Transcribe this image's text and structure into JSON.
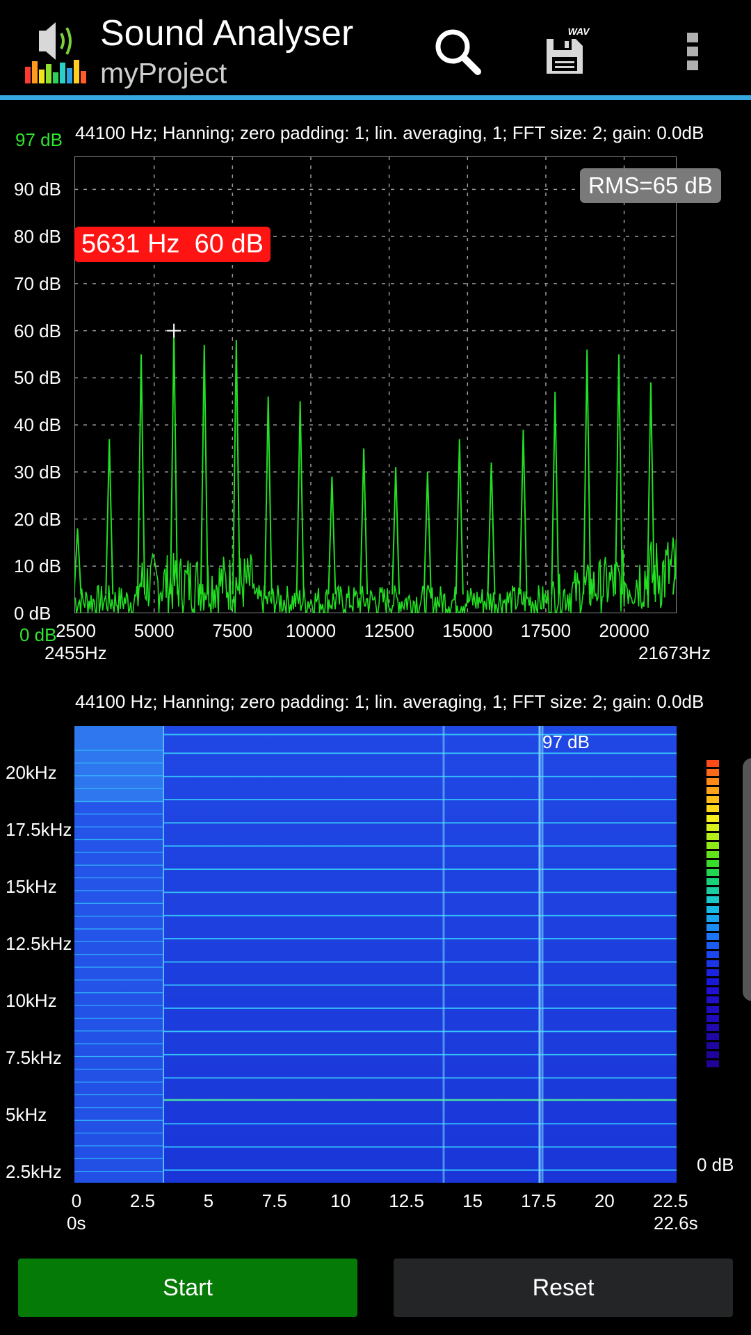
{
  "app": {
    "title": "Sound Analyser",
    "subtitle": "myProject",
    "accent_color": "#35a8e0"
  },
  "toolbar": {
    "search_icon": "search-icon",
    "save_icon": "save-wav-icon",
    "save_badge": "WAV",
    "overflow_icon": "more-vert-icon"
  },
  "spectrum": {
    "info": "44100 Hz; Hanning; zero padding: 1; lin. averaging, 1; FFT size: 2; gain: 0.0dB",
    "y_max_label": "97 dB",
    "y_min_label": "0 dB",
    "y_ticks": [
      "90 dB",
      "80 dB",
      "70 dB",
      "60 dB",
      "50 dB",
      "40 dB",
      "30 dB",
      "20 dB",
      "10 dB",
      "0 dB"
    ],
    "x_ticks": [
      "2500",
      "5000",
      "7500",
      "10000",
      "12500",
      "15000",
      "17500",
      "20000"
    ],
    "x_start_label": "2455Hz",
    "x_end_label": "21673Hz",
    "marker_label": "5631 Hz  60 dB",
    "rms_label": "RMS=65 dB",
    "colors": {
      "trace": "#22e022",
      "marker": "#ff1414",
      "grid": "#9a9a9a"
    }
  },
  "spectrogram": {
    "info": "44100 Hz; Hanning; zero padding: 1; lin. averaging, 1; FFT size: 2; gain: 0.0dB",
    "y_ticks": [
      "20kHz",
      "17.5kHz",
      "15kHz",
      "12.5kHz",
      "10kHz",
      "7.5kHz",
      "5kHz",
      "2.5kHz"
    ],
    "x_ticks": [
      "0",
      "2.5",
      "5",
      "7.5",
      "10",
      "12.5",
      "15",
      "17.5",
      "20",
      "22.5"
    ],
    "x_start_label": "0s",
    "x_end_label": "22.6s",
    "scale_max": "97 dB",
    "scale_min": "0 dB",
    "colors": {
      "background": "#1c3fe0",
      "line": "#38d0ff"
    }
  },
  "chart_data": {
    "type": "line",
    "xlabel": "",
    "ylabel": "",
    "xlim": [
      2455,
      21673
    ],
    "ylim": [
      0,
      97
    ],
    "series": [
      {
        "x": [
          2555,
          3570,
          4586,
          5631,
          6600,
          7622,
          8640,
          9660,
          10675,
          11690,
          12710,
          13725,
          14745,
          15760,
          16780,
          17795,
          18815,
          19830,
          20850,
          21670
        ],
        "values": [
          18,
          37,
          55,
          60,
          57,
          58,
          46,
          45,
          29,
          35,
          31,
          30,
          37,
          32,
          39,
          47,
          56,
          55,
          49,
          12
        ]
      }
    ],
    "marker": {
      "x": 5631,
      "y": 60
    }
  }
}
